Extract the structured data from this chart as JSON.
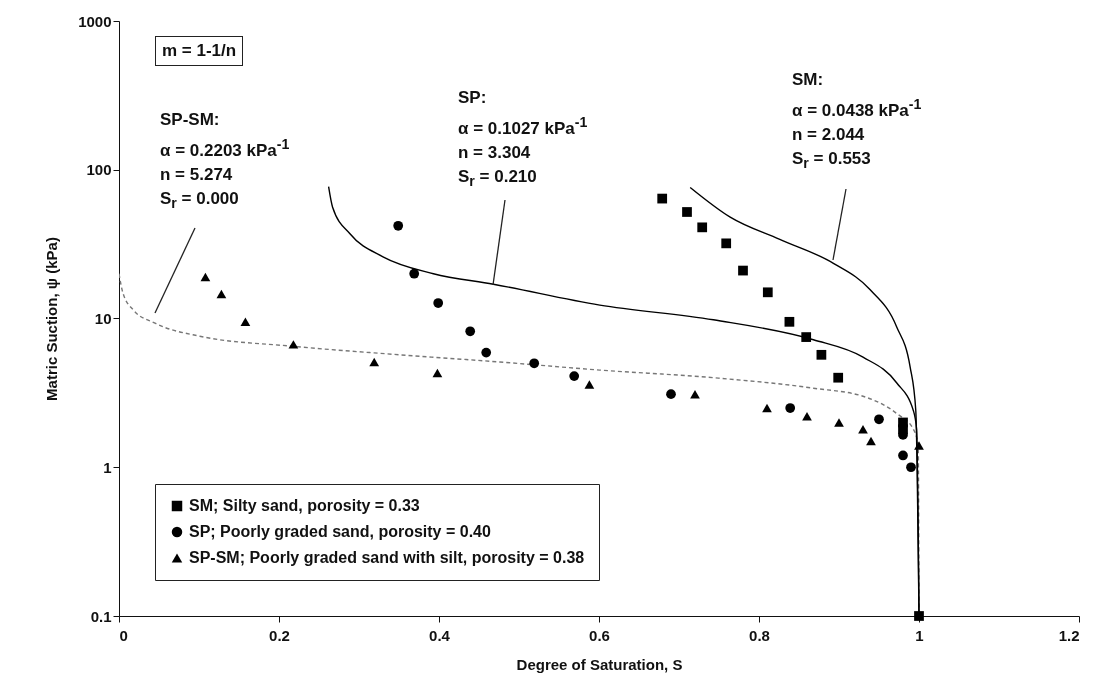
{
  "chart_data": {
    "type": "scatter",
    "xlabel": "Degree of Saturation, S",
    "ylabel": "Matric Suction, ψ (kPa)",
    "xlim": [
      0,
      1.2
    ],
    "xticks": [
      0,
      0.2,
      0.4,
      0.6,
      0.8,
      1,
      1.2
    ],
    "ylim": [
      0.1,
      1000
    ],
    "yticks": [
      0.1,
      1,
      10,
      100,
      1000
    ],
    "log": "y",
    "legend": "bottom left",
    "series": [
      {
        "type": "line",
        "color": "#777777",
        "line_style": "dashed",
        "marker": "none",
        "x": [
          0,
          0.005,
          0.018,
          0.045,
          0.101,
          0.218,
          0.351,
          0.476,
          0.601,
          0.743,
          0.868,
          0.93,
          0.972,
          0.993,
          0.999,
          1
        ],
        "values": [
          20,
          14.8,
          11.4,
          9.3,
          7.6,
          6.5,
          5.7,
          5.1,
          4.5,
          4.0,
          3.4,
          3.0,
          2.3,
          1.8,
          1.4,
          0.1
        ]
      },
      {
        "type": "line",
        "color": "#000000",
        "line_style": "solid",
        "marker": "none",
        "x": [
          0.262,
          0.267,
          0.289,
          0.33,
          0.393,
          0.468,
          0.601,
          0.743,
          0.868,
          0.93,
          0.972,
          0.993,
          0.997,
          1
        ],
        "values": [
          77,
          56,
          37,
          26,
          20,
          17,
          12.3,
          9.8,
          7.2,
          5.5,
          3.7,
          2.4,
          1.8,
          0.1
        ]
      },
      {
        "type": "line",
        "color": "#000000",
        "line_style": "solid",
        "marker": "none",
        "x": [
          0.714,
          0.764,
          0.826,
          0.893,
          0.939,
          0.972,
          0.989,
          0.996,
          1
        ],
        "values": [
          76,
          48,
          34,
          23.5,
          15.6,
          8.8,
          4.7,
          2.4,
          0.1
        ]
      },
      {
        "name": "SM; Silty sand, porosity = 0.33",
        "color": "#000000",
        "marker": "square",
        "x": [
          0.679,
          0.71,
          0.729,
          0.759,
          0.78,
          0.811,
          0.838,
          0.859,
          0.878,
          0.899,
          0.98,
          0.98,
          1
        ],
        "values": [
          64,
          52,
          41,
          32,
          21,
          15,
          9.5,
          7.5,
          5.7,
          4.0,
          2.0,
          1.8,
          0.1
        ]
      },
      {
        "name": "SP; Poorly graded sand, porosity = 0.40",
        "color": "#000000",
        "marker": "circle",
        "x": [
          0.349,
          0.369,
          0.399,
          0.439,
          0.459,
          0.519,
          0.569,
          0.69,
          0.839,
          0.95,
          0.98,
          0.98,
          0.99
        ],
        "values": [
          42,
          20,
          12.7,
          8.2,
          5.9,
          5.0,
          4.1,
          3.1,
          2.5,
          2.1,
          1.65,
          1.2,
          1.0
        ]
      },
      {
        "name": "SP-SM; Poorly graded sand with silt, porosity = 0.38",
        "color": "#000000",
        "marker": "triangle",
        "x": [
          0.108,
          0.128,
          0.158,
          0.218,
          0.319,
          0.398,
          0.588,
          0.72,
          0.81,
          0.86,
          0.9,
          0.93,
          0.94,
          1
        ],
        "values": [
          19,
          14.6,
          9.5,
          6.7,
          5.1,
          4.3,
          3.6,
          3.1,
          2.5,
          2.2,
          2.0,
          1.8,
          1.5,
          1.4
        ]
      }
    ],
    "annotations": [
      "m = 1-1/n",
      "SP-SM:\nα = 0.2203 kPa$^{-1}$\nn = 5.274\nS$_{r}$ = 0.000",
      "SP:\nα = 0.1027 kPa$^{-1}$\nn = 3.304\nS$_{r}$ = 0.210",
      "SM:\nα = 0.0438 kPa$^{-1}$\nn = 2.044\nS$_{r}$ = 0.553"
    ]
  }
}
